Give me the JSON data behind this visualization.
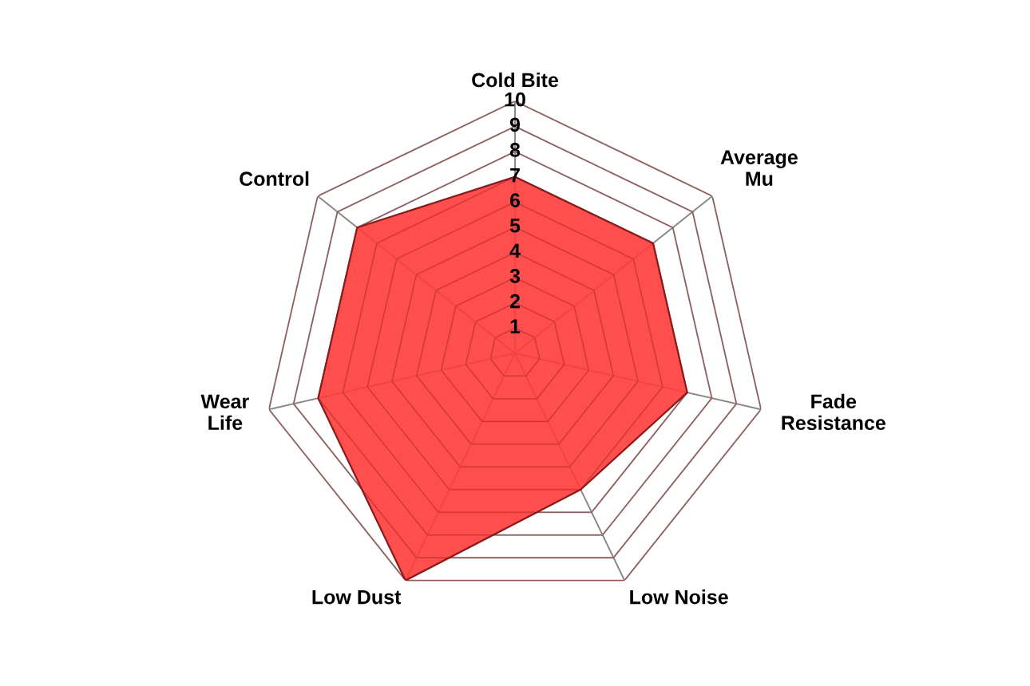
{
  "chart_data": {
    "type": "radar",
    "categories": [
      "Cold Bite",
      "Average\nMu",
      "Fade\nResistance",
      "Low Noise",
      "Low Dust",
      "Wear\nLife",
      "Control"
    ],
    "series": [
      {
        "color": "#ff3b3b",
        "values": [
          7,
          7,
          7,
          6,
          10,
          8,
          8
        ]
      }
    ],
    "ylim": [
      0,
      10
    ],
    "yticks": [
      1,
      2,
      3,
      4,
      5,
      6,
      7,
      8,
      9,
      10
    ],
    "grid": true,
    "legend": false
  }
}
